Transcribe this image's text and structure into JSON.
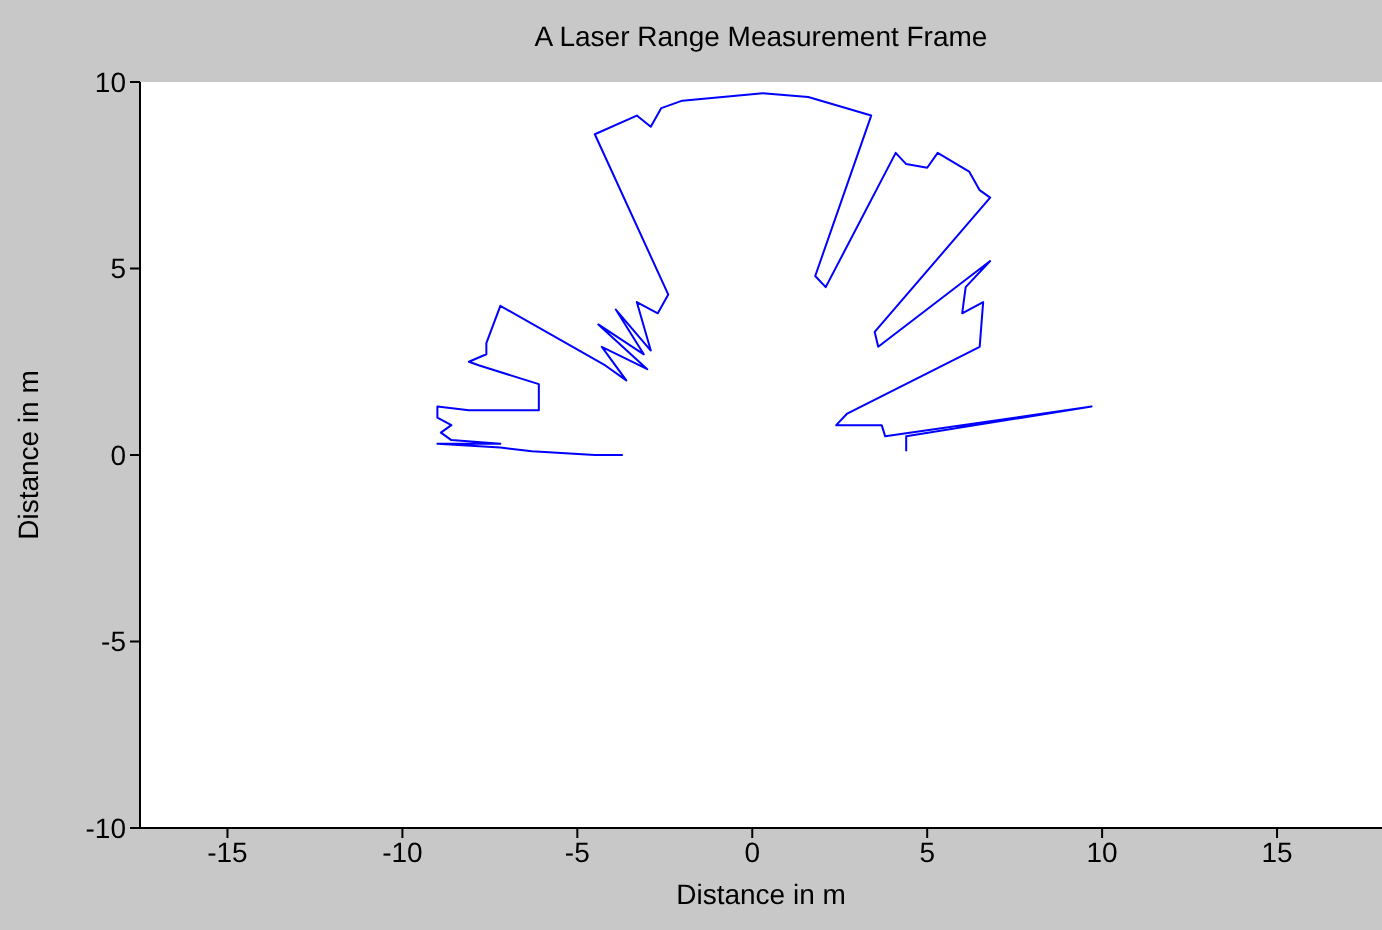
{
  "chart_data": {
    "type": "line",
    "title": "A Laser Range Measurement Frame",
    "xlabel": "Distance in m",
    "ylabel": "Distance in m",
    "xlim": [
      -17.5,
      18
    ],
    "ylim": [
      -10,
      10
    ],
    "xticks": [
      -15,
      -10,
      -5,
      0,
      5,
      10,
      15
    ],
    "yticks": [
      -10,
      -5,
      0,
      5,
      10
    ],
    "grid": false,
    "marker": "none",
    "line_style": "solid",
    "series": [
      {
        "color": "#0000ff",
        "x": [
          -3.7,
          -4.5,
          -6.3,
          -7.2,
          -9.0,
          -7.2,
          -8.6,
          -8.9,
          -8.6,
          -9.0,
          -9.0,
          -8.1,
          -6.1,
          -6.1,
          -7.8,
          -8.1,
          -7.6,
          -7.6,
          -7.2,
          -4.2,
          -3.6,
          -4.3,
          -3.0,
          -4.4,
          -3.1,
          -3.9,
          -2.9,
          -3.3,
          -2.7,
          -2.4,
          -4.5,
          -3.3,
          -2.9,
          -2.6,
          -2.0,
          0.3,
          1.6,
          3.4,
          1.8,
          2.1,
          4.1,
          4.4,
          5.0,
          5.3,
          6.2,
          6.5,
          6.8,
          3.5,
          3.6,
          6.8,
          6.1,
          6.0,
          6.6,
          6.5,
          2.7,
          2.4,
          3.7,
          3.8,
          9.7,
          4.4,
          4.4
        ],
        "values": [
          0.0,
          0.0,
          0.1,
          0.2,
          0.3,
          0.3,
          0.4,
          0.6,
          0.8,
          1.0,
          1.3,
          1.2,
          1.2,
          1.9,
          2.4,
          2.5,
          2.7,
          3.0,
          4.0,
          2.4,
          2.0,
          2.9,
          2.3,
          3.5,
          2.7,
          3.9,
          2.8,
          4.1,
          3.8,
          4.3,
          8.6,
          9.1,
          8.8,
          9.3,
          9.5,
          9.7,
          9.6,
          9.1,
          4.8,
          4.5,
          8.1,
          7.8,
          7.7,
          8.1,
          7.6,
          7.1,
          6.9,
          3.3,
          2.9,
          5.2,
          4.5,
          3.8,
          4.1,
          2.9,
          1.1,
          0.8,
          0.8,
          0.5,
          1.3,
          0.5,
          0.1
        ]
      }
    ]
  }
}
